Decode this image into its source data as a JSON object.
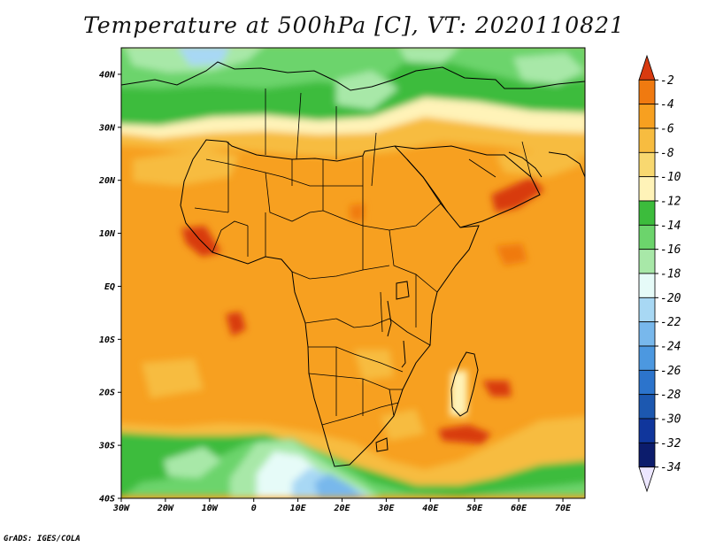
{
  "title": "Temperature at 500hPa [C], VT: 2020110821",
  "credit": "GrADS: IGES/COLA",
  "map": {
    "lon_range": [
      -30,
      75
    ],
    "lat_range": [
      -40,
      45
    ],
    "lat_ticks": [
      {
        "lat": 40,
        "label": "40N"
      },
      {
        "lat": 30,
        "label": "30N"
      },
      {
        "lat": 20,
        "label": "20N"
      },
      {
        "lat": 10,
        "label": "10N"
      },
      {
        "lat": 0,
        "label": "EQ"
      },
      {
        "lat": -10,
        "label": "10S"
      },
      {
        "lat": -20,
        "label": "20S"
      },
      {
        "lat": -30,
        "label": "30S"
      },
      {
        "lat": -40,
        "label": "40S"
      }
    ],
    "lon_ticks": [
      {
        "lon": -30,
        "label": "30W"
      },
      {
        "lon": -20,
        "label": "20W"
      },
      {
        "lon": -10,
        "label": "10W"
      },
      {
        "lon": 0,
        "label": "0"
      },
      {
        "lon": 10,
        "label": "10E"
      },
      {
        "lon": 20,
        "label": "20E"
      },
      {
        "lon": 30,
        "label": "30E"
      },
      {
        "lon": 40,
        "label": "40E"
      },
      {
        "lon": 50,
        "label": "50E"
      },
      {
        "lon": 60,
        "label": "60E"
      },
      {
        "lon": 70,
        "label": "70E"
      }
    ]
  },
  "colorbar": {
    "labels": [
      "-2",
      "-4",
      "-6",
      "-8",
      "-10",
      "-12",
      "-14",
      "-16",
      "-18",
      "-20",
      "-22",
      "-24",
      "-26",
      "-28",
      "-30",
      "-32",
      "-34"
    ],
    "colors": [
      "#d83a10",
      "#f07a10",
      "#f7a020",
      "#f7bc40",
      "#f8d870",
      "#fff3b8",
      "#3cbc3c",
      "#6cd46c",
      "#a8e8a8",
      "#e6fbf8",
      "#a8d8f4",
      "#78b8ec",
      "#4c98e0",
      "#2c74cc",
      "#1c58b0",
      "#10369c",
      "#0c1c6c",
      "#ece6ff"
    ]
  }
}
